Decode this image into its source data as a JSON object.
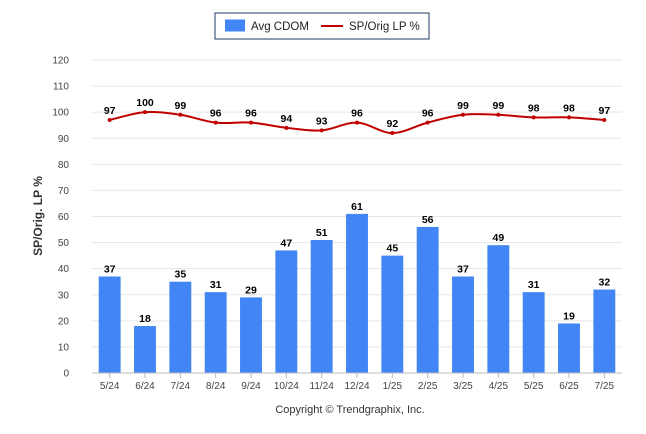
{
  "chart_data": {
    "type": "bar",
    "categories": [
      "5/24",
      "6/24",
      "7/24",
      "8/24",
      "9/24",
      "10/24",
      "11/24",
      "12/24",
      "1/25",
      "2/25",
      "3/25",
      "4/25",
      "5/25",
      "6/25",
      "7/25"
    ],
    "series": [
      {
        "name": "Avg CDOM",
        "type": "bar",
        "color": "#4285f4",
        "values": [
          37,
          18,
          35,
          31,
          29,
          47,
          51,
          61,
          45,
          56,
          37,
          49,
          31,
          19,
          32
        ]
      },
      {
        "name": "SP/Orig LP %",
        "type": "line",
        "color": "#c00000",
        "values": [
          97,
          100,
          99,
          96,
          96,
          94,
          93,
          96,
          92,
          96,
          99,
          99,
          98,
          98,
          97
        ]
      }
    ],
    "ylabel": "SP/Orig. LP %",
    "ylim": [
      0,
      120
    ],
    "yticks": [
      0,
      10,
      20,
      30,
      40,
      50,
      60,
      70,
      80,
      90,
      100,
      110,
      120
    ],
    "grid": true,
    "legend_position": "top-center",
    "data_labels": true
  },
  "footer": {
    "copyright": "Copyright © Trendgraphix, Inc."
  }
}
